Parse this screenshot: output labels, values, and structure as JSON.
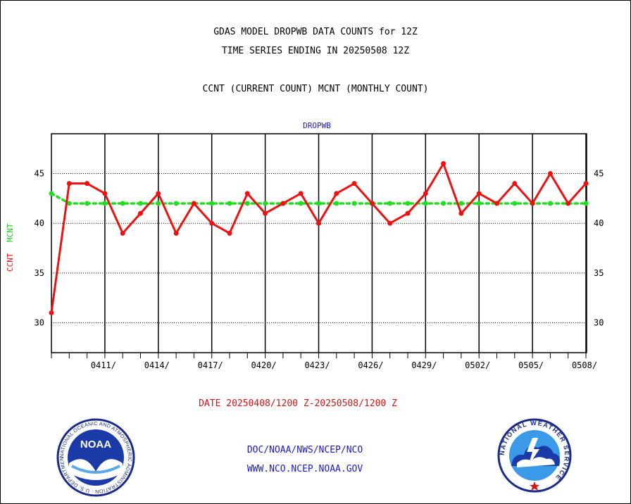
{
  "header": {
    "title_line1": "GDAS MODEL DROPWB DATA COUNTS for 12Z",
    "title_line2": "TIME SERIES ENDING IN 20250508 12Z",
    "subtitle": "CCNT (CURRENT COUNT) MCNT (MONTHLY COUNT)"
  },
  "chart_data": {
    "type": "line",
    "title": "DROPWB",
    "xlabel": "DATE 20250408/1200 Z-20250508/1200 Z",
    "ylabel": "CCNT  MCNT",
    "ylabel_parts": [
      "CCNT",
      "MCNT"
    ],
    "ylim": [
      27,
      49
    ],
    "yticks": [
      30,
      35,
      40,
      45
    ],
    "grid": true,
    "x_tick_labels": [
      "0411/",
      "0414/",
      "0417/",
      "0420/",
      "0423/",
      "0426/",
      "0429/",
      "0502/",
      "0505/",
      "0508/"
    ],
    "x": [
      "0408",
      "0409",
      "0410",
      "0411",
      "0412",
      "0413",
      "0414",
      "0415",
      "0416",
      "0417",
      "0418",
      "0419",
      "0420",
      "0421",
      "0422",
      "0423",
      "0424",
      "0425",
      "0426",
      "0427",
      "0428",
      "0429",
      "0430",
      "0501",
      "0502",
      "0503",
      "0504",
      "0505",
      "0506",
      "0507",
      "0508"
    ],
    "series": [
      {
        "name": "CCNT",
        "color": "#ee1111",
        "values": [
          31,
          44,
          44,
          43,
          39,
          41,
          43,
          39,
          42,
          40,
          39,
          43,
          41,
          42,
          43,
          40,
          43,
          44,
          42,
          40,
          41,
          43,
          46,
          41,
          43,
          42,
          44,
          42,
          45,
          42,
          44
        ]
      },
      {
        "name": "MCNT",
        "color": "#22dd22",
        "values": [
          43,
          42,
          42,
          42,
          42,
          42,
          42,
          42,
          42,
          42,
          42,
          42,
          42,
          42,
          42,
          42,
          42,
          42,
          42,
          42,
          42,
          42,
          42,
          42,
          42,
          42,
          42,
          42,
          42,
          42,
          42
        ]
      }
    ]
  },
  "footer": {
    "credit_line1": "DOC/NOAA/NWS/NCEP/NCO",
    "credit_line2": "WWW.NCO.NCEP.NOAA.GOV",
    "logo_left": {
      "icon": "noaa-logo-icon",
      "center_text": "NOAA",
      "ring_text": "NATIONAL OCEANIC AND ATMOSPHERIC ADMINISTRATION · U.S. DEPARTMENT OF COMMERCE"
    },
    "logo_right": {
      "icon": "nws-logo-icon",
      "ring_text": "NATIONAL WEATHER SERVICE"
    }
  }
}
